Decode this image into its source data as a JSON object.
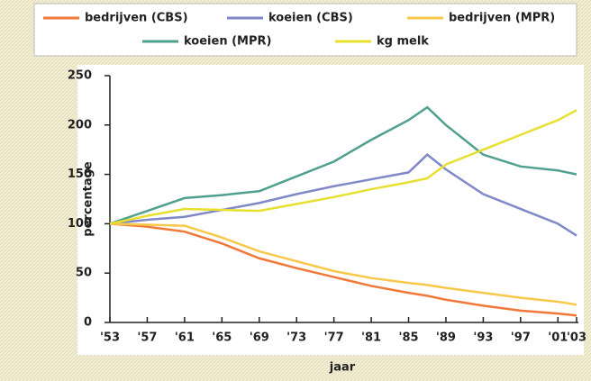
{
  "chart_data": {
    "type": "line",
    "x": [
      1953,
      1957,
      1961,
      1965,
      1969,
      1973,
      1977,
      1981,
      1985,
      1987,
      1989,
      1993,
      1997,
      2001,
      2003
    ],
    "series": [
      {
        "name": "bedrijven (CBS)",
        "color": "#f07838",
        "values": [
          100,
          97,
          92,
          80,
          65,
          55,
          46,
          37,
          30,
          27,
          23,
          17,
          12,
          9,
          7
        ]
      },
      {
        "name": "koeien (CBS)",
        "color": "#8088c8",
        "values": [
          100,
          104,
          107,
          114,
          121,
          130,
          138,
          145,
          152,
          170,
          155,
          130,
          115,
          100,
          88
        ]
      },
      {
        "name": "bedrijven (MPR)",
        "color": "#f8c848",
        "values": [
          100,
          99,
          98,
          86,
          72,
          62,
          52,
          45,
          40,
          38,
          35,
          30,
          25,
          21,
          18
        ]
      },
      {
        "name": "koeien (MPR)",
        "color": "#50a090",
        "values": [
          100,
          113,
          126,
          129,
          133,
          148,
          163,
          185,
          205,
          218,
          200,
          170,
          158,
          154,
          150
        ]
      },
      {
        "name": "kg melk",
        "color": "#e8e030",
        "values": [
          100,
          108,
          115,
          114,
          113,
          120,
          127,
          135,
          142,
          146,
          160,
          175,
          190,
          205,
          215
        ]
      }
    ],
    "xlabel": "jaar",
    "ylabel": "percentage",
    "xlim": [
      1953,
      2003
    ],
    "xticks": [
      {
        "value": 1953,
        "label": "'53"
      },
      {
        "value": 1957,
        "label": "'57"
      },
      {
        "value": 1961,
        "label": "'61"
      },
      {
        "value": 1965,
        "label": "'65"
      },
      {
        "value": 1969,
        "label": "'69"
      },
      {
        "value": 1973,
        "label": "'73"
      },
      {
        "value": 1977,
        "label": "'77"
      },
      {
        "value": 1981,
        "label": "'81"
      },
      {
        "value": 1985,
        "label": "'85"
      },
      {
        "value": 1989,
        "label": "'89"
      },
      {
        "value": 1993,
        "label": "'93"
      },
      {
        "value": 1997,
        "label": "'97"
      },
      {
        "value": 2001,
        "label": "'01"
      },
      {
        "value": 2003,
        "label": "'03"
      }
    ],
    "ylim": [
      0,
      250
    ],
    "yticks": [
      0,
      50,
      100,
      150,
      200,
      250
    ],
    "legend": "top"
  }
}
